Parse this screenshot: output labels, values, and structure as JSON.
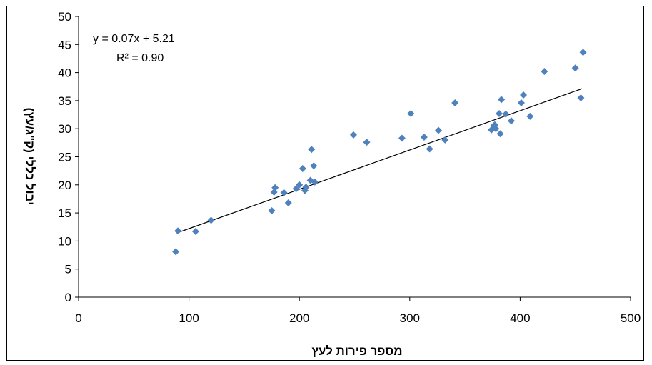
{
  "chart_data": {
    "type": "scatter",
    "title": "",
    "xlabel": "מספר פירות לעץ",
    "ylabel": "יבול כללי (ק\"ג/עץ)",
    "xlim": [
      0,
      500
    ],
    "ylim": [
      0,
      50
    ],
    "xticks": [
      0,
      100,
      200,
      300,
      400,
      500
    ],
    "yticks": [
      0,
      5,
      10,
      15,
      20,
      25,
      30,
      35,
      40,
      45,
      50
    ],
    "grid": false,
    "legend": "none",
    "marker": "diamond",
    "marker_color": "#4F81BD",
    "trendline": {
      "slope": 0.07,
      "intercept": 5.21,
      "x_range": [
        90,
        456
      ],
      "equation": "y = 0.07x + 5.21",
      "r_squared": "R² = 0.90"
    },
    "series": [
      {
        "points": [
          [
            88,
            8.1
          ],
          [
            90,
            11.8
          ],
          [
            106,
            11.7
          ],
          [
            120,
            13.7
          ],
          [
            175,
            15.4
          ],
          [
            177,
            18.7
          ],
          [
            178,
            19.5
          ],
          [
            186,
            18.6
          ],
          [
            190,
            16.8
          ],
          [
            197,
            19.3
          ],
          [
            200,
            20.0
          ],
          [
            203,
            22.9
          ],
          [
            205,
            19.0
          ],
          [
            206,
            19.6
          ],
          [
            210,
            20.8
          ],
          [
            211,
            26.3
          ],
          [
            213,
            23.4
          ],
          [
            214,
            20.5
          ],
          [
            249,
            28.9
          ],
          [
            261,
            27.6
          ],
          [
            293,
            28.3
          ],
          [
            301,
            32.7
          ],
          [
            313,
            28.5
          ],
          [
            318,
            26.4
          ],
          [
            326,
            29.7
          ],
          [
            332,
            28.0
          ],
          [
            341,
            34.6
          ],
          [
            374,
            29.8
          ],
          [
            376,
            30.5
          ],
          [
            377,
            30.7
          ],
          [
            378,
            30.0
          ],
          [
            381,
            32.7
          ],
          [
            382,
            29.1
          ],
          [
            383,
            35.2
          ],
          [
            387,
            32.6
          ],
          [
            392,
            31.4
          ],
          [
            401,
            34.6
          ],
          [
            403,
            36.0
          ],
          [
            409,
            32.2
          ],
          [
            422,
            40.2
          ],
          [
            450,
            40.8
          ],
          [
            455,
            35.5
          ],
          [
            457,
            43.6
          ]
        ]
      }
    ]
  }
}
